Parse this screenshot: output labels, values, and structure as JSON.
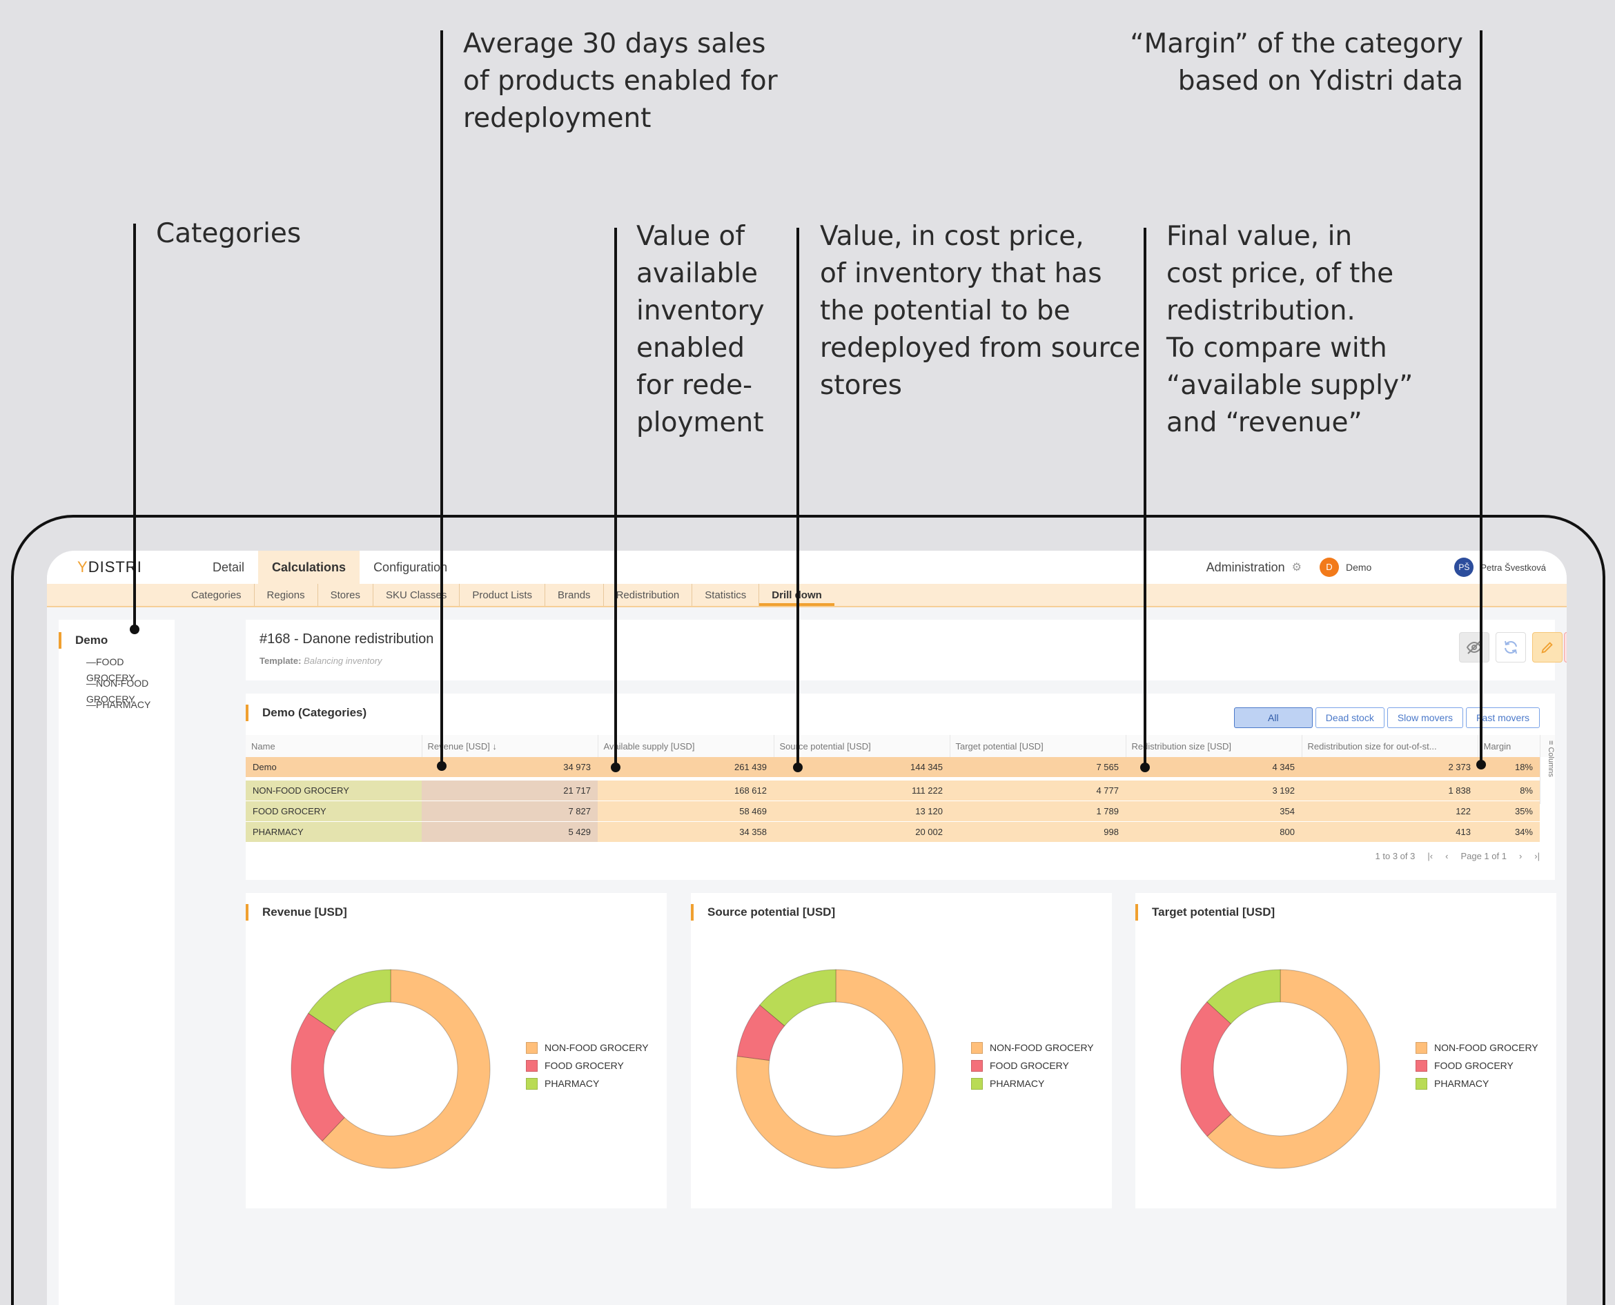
{
  "annotations": {
    "categories": "Categories",
    "revenue": "Average 30 days sales\nof products enabled for\nredeployment",
    "available_supply": "Value of\navailable\ninventory\nenabled\nfor rede-\nployment",
    "source_potential": "Value, in cost price,\nof inventory that has\nthe potential to be\nredeployed from source\nstores",
    "redistribution_size": "Final value, in\ncost price, of the\nredistribution.\nTo compare with\n“available supply”\nand “revenue”",
    "margin": "“Margin” of the category\nbased on Ydistri data"
  },
  "app": {
    "logo_mark": "Y",
    "logo_text": "DISTRI",
    "nav": [
      "Detail",
      "Calculations",
      "Configuration"
    ],
    "nav_active": "Calculations",
    "admin_label": "Administration",
    "org_initial": "D",
    "org_name": "Demo",
    "user_initials": "PŠ",
    "user_name": "Petra Švestková",
    "subnav": [
      "Categories",
      "Regions",
      "Stores",
      "SKU Classes",
      "Product Lists",
      "Brands",
      "Redistribution",
      "Statistics",
      "Drill down"
    ],
    "subnav_active": "Drill down"
  },
  "tree": {
    "root": "Demo",
    "children": [
      "—FOOD GROCERY",
      "—NON-FOOD GROCERY",
      "—PHARMACY"
    ]
  },
  "calc": {
    "title": "#168 - Danone redistribution",
    "template_label": "Template:",
    "template_value": "Balancing inventory",
    "icons": [
      "eye-off-icon",
      "refresh-icon",
      "edit-icon",
      "delete-icon"
    ]
  },
  "grid": {
    "title": "Demo (Categories)",
    "filters": [
      "All",
      "Dead stock",
      "Slow movers",
      "Fast movers"
    ],
    "filter_active": "All",
    "columns": [
      "Name",
      "Revenue [USD] ↓",
      "Available supply [USD]",
      "Source potential [USD]",
      "Target potential [USD]",
      "Redistribution size [USD]",
      "Redistribution size for out-of-st...",
      "Margin"
    ],
    "columns_tab": "Columns",
    "total": [
      "Demo",
      "34 973",
      "261 439",
      "144 345",
      "7 565",
      "4 345",
      "2 373",
      "18%"
    ],
    "rows": [
      [
        "NON-FOOD GROCERY",
        "21 717",
        "168 612",
        "111 222",
        "4 777",
        "3 192",
        "1 838",
        "8%"
      ],
      [
        "FOOD GROCERY",
        "7 827",
        "58 469",
        "13 120",
        "1 789",
        "354",
        "122",
        "35%"
      ],
      [
        "PHARMACY",
        "5 429",
        "34 358",
        "20 002",
        "998",
        "800",
        "413",
        "34%"
      ]
    ],
    "pager_count": "1 to 3 of 3",
    "pager_page": "Page 1 of 1"
  },
  "colors": {
    "nonfood": "#ffbf7a",
    "food": "#f4707a",
    "pharmacy": "#b9db55",
    "accent": "#f0a030"
  },
  "chart_data": [
    {
      "type": "pie",
      "title": "Revenue [USD]",
      "categories": [
        "NON-FOOD GROCERY",
        "FOOD GROCERY",
        "PHARMACY"
      ],
      "values": [
        21717,
        7827,
        5429
      ]
    },
    {
      "type": "pie",
      "title": "Source potential [USD]",
      "categories": [
        "NON-FOOD GROCERY",
        "FOOD GROCERY",
        "PHARMACY"
      ],
      "values": [
        111222,
        13120,
        20002
      ]
    },
    {
      "type": "pie",
      "title": "Target potential [USD]",
      "categories": [
        "NON-FOOD GROCERY",
        "FOOD GROCERY",
        "PHARMACY"
      ],
      "values": [
        4777,
        1789,
        998
      ]
    }
  ]
}
